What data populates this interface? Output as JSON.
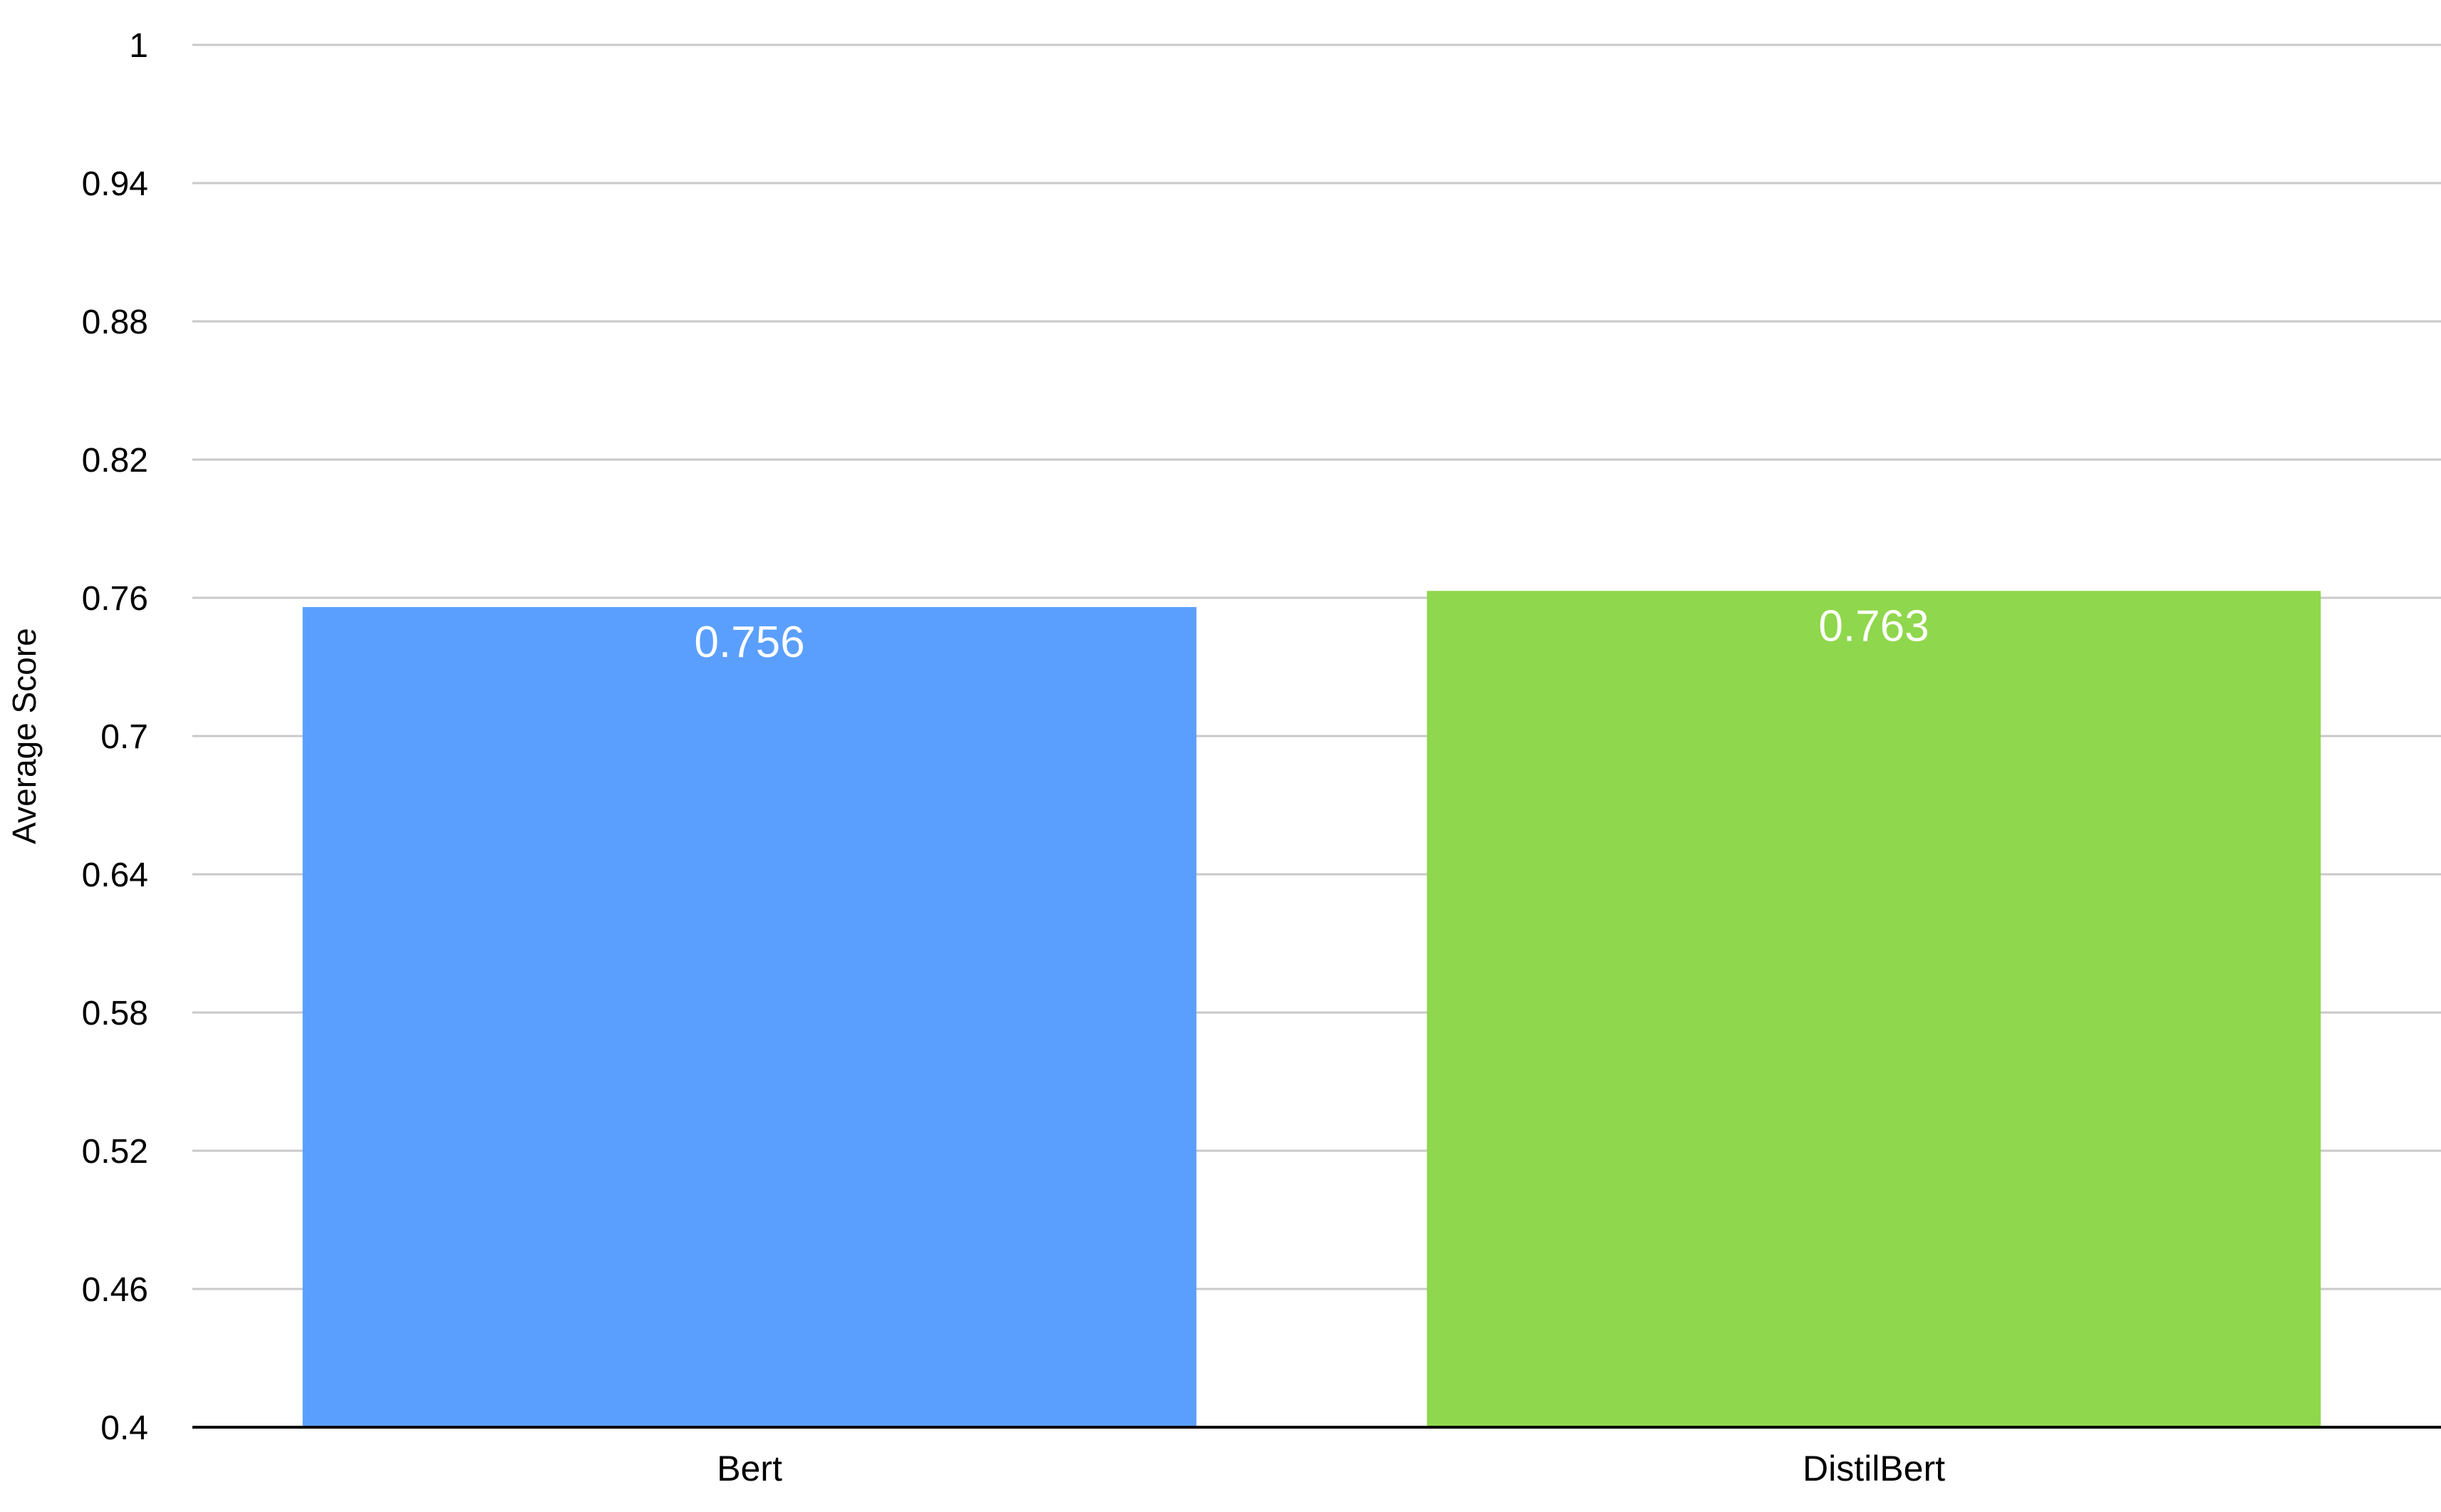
{
  "chart_data": {
    "type": "bar",
    "categories": [
      "Bert",
      "DistilBert"
    ],
    "values": [
      0.756,
      0.763
    ],
    "data_labels": [
      "0.756",
      "0.763"
    ],
    "colors": [
      "#5b9ffe",
      "#8fd74c"
    ],
    "title": "",
    "xlabel": "",
    "ylabel": "Average Score",
    "ylim": [
      0.4,
      1
    ],
    "yticks": [
      0.4,
      0.46,
      0.52,
      0.58,
      0.64,
      0.7,
      0.76,
      0.82,
      0.88,
      0.94,
      1
    ],
    "ytick_labels": [
      "0.4",
      "0.46",
      "0.52",
      "0.58",
      "0.64",
      "0.7",
      "0.76",
      "0.82",
      "0.88",
      "0.94",
      "1"
    ],
    "grid": true,
    "legend": "none"
  }
}
